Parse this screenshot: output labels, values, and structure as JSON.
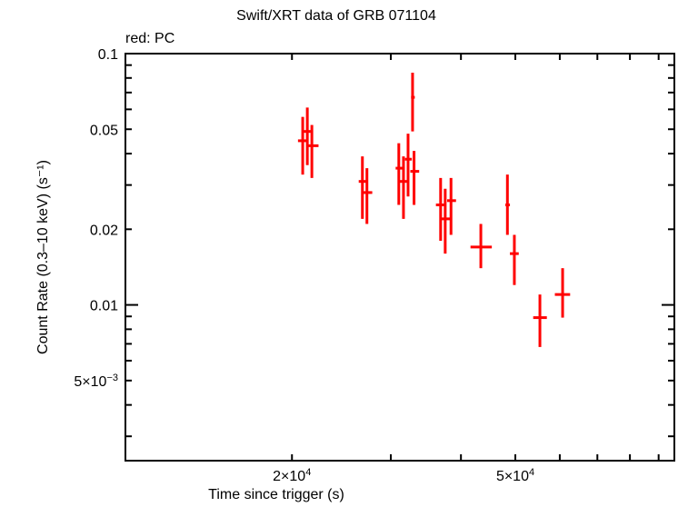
{
  "chart": {
    "title": "Swift/XRT data of GRB 071104",
    "legend_note": "red: PC",
    "xlabel": "Time since trigger (s)",
    "ylabel": "Count Rate (0.3–10 keV) (s⁻¹)",
    "series_color": "#ff0000"
  },
  "chart_data": {
    "type": "scatter",
    "title": "Swift/XRT data of GRB 071104",
    "xlabel": "Time since trigger (s)",
    "ylabel": "Count Rate (0.3-10 keV) (s^-1)",
    "xscale": "log",
    "yscale": "log",
    "xlim": [
      10100,
      96000
    ],
    "ylim": [
      0.0024,
      0.1
    ],
    "x_tick_labels": [
      {
        "value": 20000,
        "label": "2×10⁴"
      },
      {
        "value": 50000,
        "label": "5×10⁴"
      }
    ],
    "y_tick_labels": [
      {
        "value": 0.1,
        "label": "0.1"
      },
      {
        "value": 0.05,
        "label": "0.05"
      },
      {
        "value": 0.02,
        "label": "0.02"
      },
      {
        "value": 0.01,
        "label": "0.01"
      },
      {
        "value": 0.005,
        "label": "5×10⁻³"
      }
    ],
    "legend": [
      {
        "name": "PC",
        "color": "#ff0000",
        "position": "top-left"
      }
    ],
    "grid": false,
    "series": [
      {
        "name": "PC",
        "color": "#ff0000",
        "points": [
          {
            "x": 20900,
            "xerr": [
              20500,
              21300
            ],
            "y": 0.045,
            "ylo": 0.033,
            "yhi": 0.056
          },
          {
            "x": 21300,
            "xerr": [
              21000,
              21700
            ],
            "y": 0.049,
            "ylo": 0.036,
            "yhi": 0.061
          },
          {
            "x": 21700,
            "xerr": [
              21300,
              22300
            ],
            "y": 0.043,
            "ylo": 0.032,
            "yhi": 0.052
          },
          {
            "x": 26700,
            "xerr": [
              26300,
              27200
            ],
            "y": 0.031,
            "ylo": 0.022,
            "yhi": 0.039
          },
          {
            "x": 27200,
            "xerr": [
              26800,
              27800
            ],
            "y": 0.028,
            "ylo": 0.021,
            "yhi": 0.035
          },
          {
            "x": 31000,
            "xerr": [
              30600,
              31500
            ],
            "y": 0.035,
            "ylo": 0.025,
            "yhi": 0.044
          },
          {
            "x": 31600,
            "xerr": [
              31100,
              32200
            ],
            "y": 0.031,
            "ylo": 0.022,
            "yhi": 0.039
          },
          {
            "x": 32200,
            "xerr": [
              31800,
              32700
            ],
            "y": 0.038,
            "ylo": 0.027,
            "yhi": 0.048
          },
          {
            "x": 32800,
            "xerr": [
              32600,
              33100
            ],
            "y": 0.067,
            "ylo": 0.049,
            "yhi": 0.084
          },
          {
            "x": 33000,
            "xerr": [
              32500,
              33700
            ],
            "y": 0.034,
            "ylo": 0.025,
            "yhi": 0.041
          },
          {
            "x": 36800,
            "xerr": [
              36100,
              37500
            ],
            "y": 0.025,
            "ylo": 0.018,
            "yhi": 0.032
          },
          {
            "x": 37500,
            "xerr": [
              36900,
              38300
            ],
            "y": 0.022,
            "ylo": 0.016,
            "yhi": 0.029
          },
          {
            "x": 38400,
            "xerr": [
              37800,
              39200
            ],
            "y": 0.026,
            "ylo": 0.019,
            "yhi": 0.032
          },
          {
            "x": 43400,
            "xerr": [
              41600,
              45400
            ],
            "y": 0.017,
            "ylo": 0.014,
            "yhi": 0.021
          },
          {
            "x": 48400,
            "xerr": [
              48000,
              48900
            ],
            "y": 0.025,
            "ylo": 0.019,
            "yhi": 0.033
          },
          {
            "x": 49800,
            "xerr": [
              48900,
              50700
            ],
            "y": 0.016,
            "ylo": 0.012,
            "yhi": 0.019
          },
          {
            "x": 55300,
            "xerr": [
              53800,
              56900
            ],
            "y": 0.0089,
            "ylo": 0.0068,
            "yhi": 0.011
          },
          {
            "x": 60700,
            "xerr": [
              58800,
              62600
            ],
            "y": 0.011,
            "ylo": 0.0089,
            "yhi": 0.014
          }
        ]
      }
    ]
  }
}
